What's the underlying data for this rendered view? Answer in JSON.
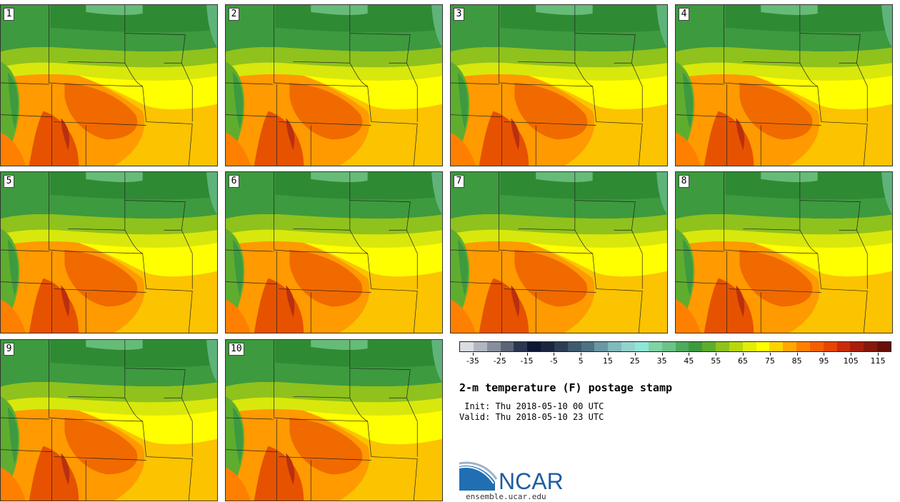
{
  "members": [
    "1",
    "2",
    "3",
    "4",
    "5",
    "6",
    "7",
    "8",
    "9",
    "10"
  ],
  "title": "2-m temperature (F) postage stamp",
  "init_text": " Init: Thu 2018-05-10 00 UTC",
  "valid_text": "Valid: Thu 2018-05-10 23 UTC",
  "logo_text": "NCAR",
  "logo_url": "ensemble.ucar.edu",
  "colorbar": {
    "colors": [
      "#d9dde2",
      "#b1b7c1",
      "#878f9c",
      "#5c6577",
      "#2b3752",
      "#0c1733",
      "#1a2540",
      "#2c3d55",
      "#3f5a6e",
      "#4f7183",
      "#6a97a3",
      "#82b9bd",
      "#93d3cc",
      "#8fe6d6",
      "#7fd3a4",
      "#6cc287",
      "#4faa5e",
      "#3e9a3f",
      "#5fad2f",
      "#8fc21c",
      "#b8d80e",
      "#e3ec0a",
      "#ffff00",
      "#ffd300",
      "#ffa800",
      "#ff8000",
      "#f46000",
      "#e54600",
      "#c82c0a",
      "#a81e0a",
      "#86180c",
      "#661008"
    ],
    "tick_labels": [
      "-35",
      "-25",
      "-15",
      "-5",
      "5",
      "15",
      "25",
      "35",
      "45",
      "55",
      "65",
      "75",
      "85",
      "95",
      "105",
      "115"
    ]
  }
}
